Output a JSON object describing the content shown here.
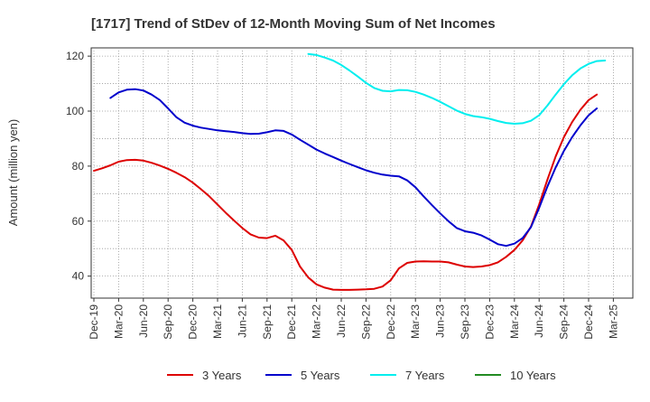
{
  "chart_data": {
    "type": "line",
    "title": "[1717]  Trend of StDev of 12-Month Moving Sum of Net Incomes",
    "ylabel": "Amount (million yen)",
    "xlabel": "",
    "ylim": [
      32,
      123
    ],
    "y_ticks": [
      40,
      60,
      80,
      100,
      120
    ],
    "x_ticks": [
      "Dec-19",
      "Mar-20",
      "Jun-20",
      "Sep-20",
      "Dec-20",
      "Mar-21",
      "Jun-21",
      "Sep-21",
      "Dec-21",
      "Mar-22",
      "Jun-22",
      "Sep-22",
      "Dec-22",
      "Mar-23",
      "Jun-23",
      "Sep-23",
      "Dec-23",
      "Mar-24",
      "Jun-24",
      "Sep-24",
      "Dec-24",
      "Mar-25"
    ],
    "grid": true,
    "legend_position": "bottom",
    "series": [
      {
        "name": "3 Years",
        "color": "#dd0000",
        "points": [
          [
            "Dec-19",
            78.3
          ],
          [
            "Jan-20",
            79.2
          ],
          [
            "Feb-20",
            80.3
          ],
          [
            "Mar-20",
            81.6
          ],
          [
            "Apr-20",
            82.2
          ],
          [
            "May-20",
            82.3
          ],
          [
            "Jun-20",
            82.0
          ],
          [
            "Jul-20",
            81.2
          ],
          [
            "Aug-20",
            80.2
          ],
          [
            "Sep-20",
            79.0
          ],
          [
            "Oct-20",
            77.6
          ],
          [
            "Nov-20",
            76.0
          ],
          [
            "Dec-20",
            74.0
          ],
          [
            "Jan-21",
            71.6
          ],
          [
            "Feb-21",
            69.0
          ],
          [
            "Mar-21",
            66.0
          ],
          [
            "Apr-21",
            63.0
          ],
          [
            "May-21",
            60.2
          ],
          [
            "Jun-21",
            57.5
          ],
          [
            "Jul-21",
            55.2
          ],
          [
            "Aug-21",
            54.0
          ],
          [
            "Sep-21",
            53.8
          ],
          [
            "Oct-21",
            54.7
          ],
          [
            "Nov-21",
            53.0
          ],
          [
            "Dec-21",
            49.5
          ],
          [
            "Jan-22",
            43.5
          ],
          [
            "Feb-22",
            39.5
          ],
          [
            "Mar-22",
            37.0
          ],
          [
            "Apr-22",
            35.8
          ],
          [
            "May-22",
            35.1
          ],
          [
            "Jun-22",
            35.0
          ],
          [
            "Jul-22",
            35.0
          ],
          [
            "Aug-22",
            35.1
          ],
          [
            "Sep-22",
            35.2
          ],
          [
            "Oct-22",
            35.4
          ],
          [
            "Nov-22",
            36.2
          ],
          [
            "Dec-22",
            38.5
          ],
          [
            "Jan-23",
            42.8
          ],
          [
            "Feb-23",
            44.8
          ],
          [
            "Mar-23",
            45.3
          ],
          [
            "Apr-23",
            45.4
          ],
          [
            "May-23",
            45.3
          ],
          [
            "Jun-23",
            45.3
          ],
          [
            "Jul-23",
            45.0
          ],
          [
            "Aug-23",
            44.2
          ],
          [
            "Sep-23",
            43.5
          ],
          [
            "Oct-23",
            43.3
          ],
          [
            "Nov-23",
            43.5
          ],
          [
            "Dec-23",
            44.0
          ],
          [
            "Jan-24",
            45.0
          ],
          [
            "Feb-24",
            47.0
          ],
          [
            "Mar-24",
            49.5
          ],
          [
            "Apr-24",
            53.0
          ],
          [
            "May-24",
            58.0
          ],
          [
            "Jun-24",
            66.0
          ],
          [
            "Jul-24",
            75.0
          ],
          [
            "Aug-24",
            83.5
          ],
          [
            "Sep-24",
            90.5
          ],
          [
            "Oct-24",
            96.0
          ],
          [
            "Nov-24",
            100.5
          ],
          [
            "Dec-24",
            104.0
          ],
          [
            "Jan-25",
            106.0
          ]
        ]
      },
      {
        "name": "5 Years",
        "color": "#0000cc",
        "points": [
          [
            "Feb-20",
            104.8
          ],
          [
            "Mar-20",
            106.8
          ],
          [
            "Apr-20",
            107.8
          ],
          [
            "May-20",
            108.0
          ],
          [
            "Jun-20",
            107.5
          ],
          [
            "Jul-20",
            106.0
          ],
          [
            "Aug-20",
            104.0
          ],
          [
            "Sep-20",
            101.0
          ],
          [
            "Oct-20",
            97.8
          ],
          [
            "Nov-20",
            95.8
          ],
          [
            "Dec-20",
            94.7
          ],
          [
            "Jan-21",
            94.0
          ],
          [
            "Feb-21",
            93.5
          ],
          [
            "Mar-21",
            93.0
          ],
          [
            "Apr-21",
            92.7
          ],
          [
            "May-21",
            92.4
          ],
          [
            "Jun-21",
            92.0
          ],
          [
            "Jul-21",
            91.7
          ],
          [
            "Aug-21",
            91.8
          ],
          [
            "Sep-21",
            92.3
          ],
          [
            "Oct-21",
            93.0
          ],
          [
            "Nov-21",
            92.8
          ],
          [
            "Dec-21",
            91.5
          ],
          [
            "Jan-22",
            89.6
          ],
          [
            "Feb-22",
            87.8
          ],
          [
            "Mar-22",
            86.0
          ],
          [
            "Apr-22",
            84.6
          ],
          [
            "May-22",
            83.3
          ],
          [
            "Jun-22",
            82.0
          ],
          [
            "Jul-22",
            80.8
          ],
          [
            "Aug-22",
            79.6
          ],
          [
            "Sep-22",
            78.5
          ],
          [
            "Oct-22",
            77.6
          ],
          [
            "Nov-22",
            76.9
          ],
          [
            "Dec-22",
            76.5
          ],
          [
            "Jan-23",
            76.3
          ],
          [
            "Feb-23",
            74.8
          ],
          [
            "Mar-23",
            72.3
          ],
          [
            "Apr-23",
            69.0
          ],
          [
            "May-23",
            65.8
          ],
          [
            "Jun-23",
            62.8
          ],
          [
            "Jul-23",
            60.0
          ],
          [
            "Aug-23",
            57.5
          ],
          [
            "Sep-23",
            56.3
          ],
          [
            "Oct-23",
            55.8
          ],
          [
            "Nov-23",
            54.8
          ],
          [
            "Dec-23",
            53.3
          ],
          [
            "Jan-24",
            51.6
          ],
          [
            "Feb-24",
            51.0
          ],
          [
            "Mar-24",
            51.8
          ],
          [
            "Apr-24",
            53.8
          ],
          [
            "May-24",
            57.8
          ],
          [
            "Jun-24",
            64.8
          ],
          [
            "Jul-24",
            72.5
          ],
          [
            "Aug-24",
            79.5
          ],
          [
            "Sep-24",
            85.5
          ],
          [
            "Oct-24",
            90.5
          ],
          [
            "Nov-24",
            94.8
          ],
          [
            "Dec-24",
            98.5
          ],
          [
            "Jan-25",
            101.0
          ]
        ]
      },
      {
        "name": "7 Years",
        "color": "#00eeee",
        "points": [
          [
            "Feb-22",
            120.8
          ],
          [
            "Mar-22",
            120.4
          ],
          [
            "Apr-22",
            119.5
          ],
          [
            "May-22",
            118.4
          ],
          [
            "Jun-22",
            116.8
          ],
          [
            "Jul-22",
            114.8
          ],
          [
            "Aug-22",
            112.6
          ],
          [
            "Sep-22",
            110.3
          ],
          [
            "Oct-22",
            108.4
          ],
          [
            "Nov-22",
            107.4
          ],
          [
            "Dec-22",
            107.2
          ],
          [
            "Jan-23",
            107.7
          ],
          [
            "Feb-23",
            107.6
          ],
          [
            "Mar-23",
            107.0
          ],
          [
            "Apr-23",
            106.0
          ],
          [
            "May-23",
            104.8
          ],
          [
            "Jun-23",
            103.4
          ],
          [
            "Jul-23",
            101.8
          ],
          [
            "Aug-23",
            100.2
          ],
          [
            "Sep-23",
            99.0
          ],
          [
            "Oct-23",
            98.2
          ],
          [
            "Nov-23",
            97.8
          ],
          [
            "Dec-23",
            97.2
          ],
          [
            "Jan-24",
            96.4
          ],
          [
            "Feb-24",
            95.7
          ],
          [
            "Mar-24",
            95.4
          ],
          [
            "Apr-24",
            95.6
          ],
          [
            "May-24",
            96.5
          ],
          [
            "Jun-24",
            98.5
          ],
          [
            "Jul-24",
            102.0
          ],
          [
            "Aug-24",
            106.0
          ],
          [
            "Sep-24",
            109.8
          ],
          [
            "Oct-24",
            113.0
          ],
          [
            "Nov-24",
            115.5
          ],
          [
            "Dec-24",
            117.2
          ],
          [
            "Jan-25",
            118.2
          ],
          [
            "Feb-25",
            118.4
          ]
        ]
      },
      {
        "name": "10 Years",
        "color": "#228b22",
        "points": []
      }
    ]
  }
}
